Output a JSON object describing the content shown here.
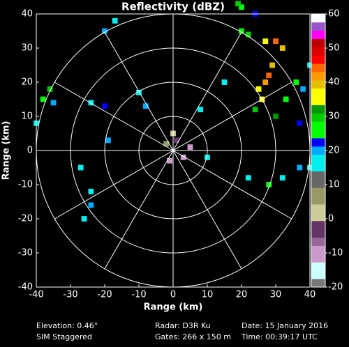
{
  "chart_data": {
    "type": "radar-ppi",
    "title": "Reflectivity (dBZ)",
    "x_label": "Range (km)",
    "y_label": "Range (km)",
    "xlim": [
      -40,
      40
    ],
    "ylim": [
      -40,
      40
    ],
    "xticks": [
      -40,
      -30,
      -20,
      -10,
      0,
      10,
      20,
      30,
      40
    ],
    "yticks": [
      -40,
      -30,
      -20,
      -10,
      0,
      10,
      20,
      30,
      40
    ],
    "echoes": {
      "x": [
        25,
        27,
        28,
        26,
        29,
        24,
        30,
        33,
        36,
        32,
        30,
        27,
        22,
        20,
        24,
        20,
        19,
        38,
        37,
        40,
        -36,
        -38,
        -35,
        -24,
        -20,
        -40,
        -19,
        -27,
        -24,
        -24,
        -26,
        0,
        1,
        -2,
        3,
        -1,
        5,
        10,
        22,
        28,
        37,
        32,
        40,
        -8,
        -20,
        -17,
        -10,
        8,
        15
      ],
      "y": [
        18,
        20,
        22,
        15,
        25,
        12,
        10,
        15,
        20,
        30,
        32,
        32,
        34,
        35,
        40,
        42,
        43,
        18,
        8,
        25,
        18,
        15,
        14,
        14,
        13,
        8,
        3,
        -5,
        -12,
        -16,
        -20,
        5,
        3,
        2,
        -2,
        -3,
        1,
        -2,
        -8,
        -10,
        -5,
        -8,
        -5,
        13,
        35,
        38,
        17,
        12,
        20
      ],
      "values": [
        35,
        42,
        45,
        38,
        40,
        30,
        33,
        28,
        25,
        40,
        45,
        38,
        30,
        25,
        22,
        28,
        30,
        20,
        22,
        15,
        30,
        25,
        20,
        18,
        22,
        15,
        20,
        18,
        16,
        20,
        18,
        0,
        -5,
        5,
        -8,
        -10,
        -12,
        15,
        18,
        25,
        20,
        15,
        18,
        20,
        20,
        18,
        16,
        15,
        14
      ]
    },
    "colorbar": {
      "clim": [
        -20,
        60
      ],
      "ticks": [
        -20,
        -10,
        0,
        10,
        20,
        30,
        40,
        50,
        60
      ],
      "colors": [
        "#777777",
        "#ccffff",
        "#ccffff",
        "#cc99cc",
        "#cc99cc",
        "#996699",
        "#663366",
        "#663366",
        "#cccc99",
        "#cccc99",
        "#999966",
        "#999966",
        "#666666",
        "#666666",
        "#00eeee",
        "#00eeee",
        "#00aaff",
        "#0000ff",
        "#00ff00",
        "#00ff00",
        "#00cc00",
        "#009900",
        "#ffff00",
        "#ffff00",
        "#e5c000",
        "#ff9900",
        "#ff6600",
        "#ff0000",
        "#dd0000",
        "#bb0000",
        "#ff00ff",
        "#9955cc",
        "#ffffff"
      ]
    },
    "footer": [
      [
        "Elevation: 0.46°",
        "SIM Staggered"
      ],
      [
        "Radar: D3R Ku",
        "Gates: 266 x 150 m"
      ],
      [
        "Date: 15 January 2016",
        "Time: 00:39:17 UTC"
      ]
    ]
  }
}
